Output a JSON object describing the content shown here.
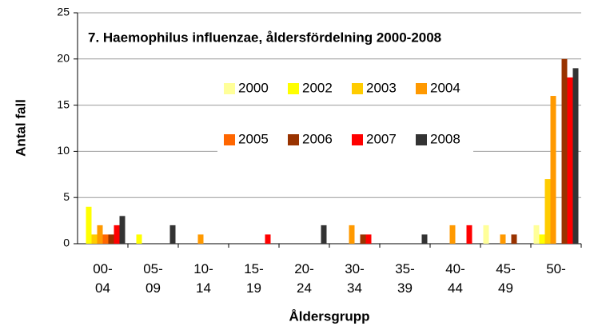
{
  "chart_data": {
    "type": "bar",
    "title": "7. Haemophilus influenzae, åldersfördelning 2000-2008",
    "x_label": "Åldersgrupp",
    "y_label": "Antal fall",
    "categories": [
      "00-04",
      "05-09",
      "10-14",
      "15-19",
      "20-24",
      "30-34",
      "35-39",
      "40-44",
      "45-49",
      "50-"
    ],
    "series": [
      {
        "name": "2000",
        "color": "#ffff99",
        "values": [
          0,
          0,
          0,
          0,
          0,
          0,
          0,
          0,
          2,
          2
        ]
      },
      {
        "name": "2002",
        "color": "#ffff00",
        "values": [
          4,
          1,
          0,
          0,
          0,
          0,
          0,
          0,
          0,
          1
        ]
      },
      {
        "name": "2003",
        "color": "#ffcc00",
        "values": [
          1,
          0,
          0,
          0,
          0,
          0,
          0,
          0,
          0,
          7
        ]
      },
      {
        "name": "2004",
        "color": "#ff9900",
        "values": [
          2,
          0,
          1,
          0,
          0,
          2,
          0,
          2,
          1,
          16
        ]
      },
      {
        "name": "2005",
        "color": "#ff6600",
        "values": [
          1,
          0,
          0,
          0,
          0,
          0,
          0,
          0,
          0,
          0
        ]
      },
      {
        "name": "2006",
        "color": "#993300",
        "values": [
          1,
          0,
          0,
          0,
          0,
          1,
          0,
          0,
          1,
          20
        ]
      },
      {
        "name": "2007",
        "color": "#ff0000",
        "values": [
          2,
          0,
          0,
          1,
          0,
          1,
          0,
          2,
          0,
          18
        ]
      },
      {
        "name": "2008",
        "color": "#333333",
        "values": [
          3,
          2,
          0,
          0,
          2,
          0,
          1,
          0,
          0,
          19
        ]
      }
    ],
    "ylim": [
      0,
      25
    ],
    "yticks": [
      0,
      5,
      10,
      15,
      20,
      25
    ],
    "grid": true
  }
}
